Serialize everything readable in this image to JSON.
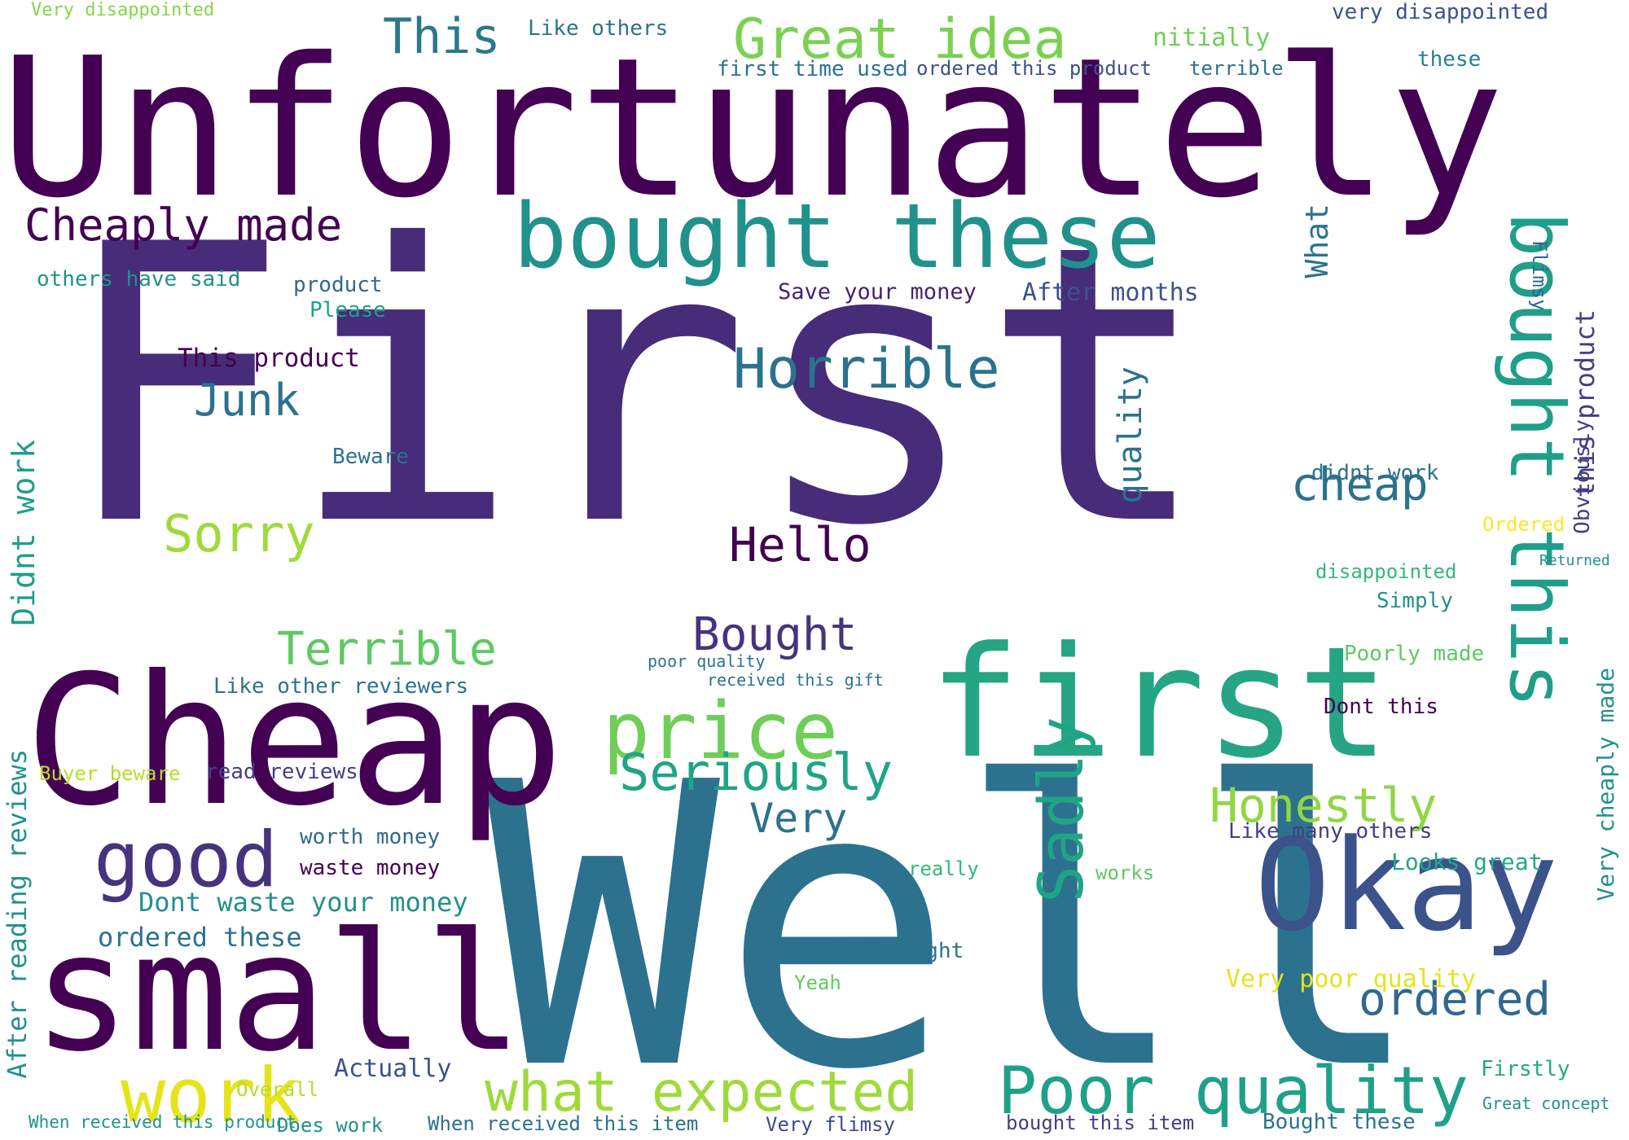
{
  "palette": {
    "dark_purple": "#440154",
    "indigo": "#3b528b",
    "blue": "#31688e",
    "teal": "#21918c",
    "green": "#35b779",
    "light_green": "#5ec962",
    "lime": "#90d743",
    "yellow": "#fde725"
  },
  "words": [
    {
      "text": "First",
      "color": "#472c7a"
    },
    {
      "text": "Well",
      "color": "#2c728e"
    },
    {
      "text": "Unfortunately",
      "color": "#440154"
    },
    {
      "text": "Cheap",
      "color": "#440154"
    },
    {
      "text": "first",
      "color": "#25a584"
    },
    {
      "text": "small",
      "color": "#440154"
    },
    {
      "text": "Okay",
      "color": "#3b528b"
    },
    {
      "text": "bought these",
      "color": "#21918c"
    },
    {
      "text": "bought this",
      "color": "#1f9e89"
    },
    {
      "text": "Poor quality",
      "color": "#1fa187"
    },
    {
      "text": "what expected",
      "color": "#9fda3a"
    },
    {
      "text": "work",
      "color": "#e5e419"
    },
    {
      "text": "good",
      "color": "#46337e"
    },
    {
      "text": "price",
      "color": "#6ece58"
    },
    {
      "text": "Great idea",
      "color": "#7ad151"
    },
    {
      "text": "Cheaply made",
      "color": "#440154"
    },
    {
      "text": "Seriously",
      "color": "#20a486"
    },
    {
      "text": "Sadly",
      "color": "#20a486"
    },
    {
      "text": "Honestly",
      "color": "#90d743"
    },
    {
      "text": "Sorry",
      "color": "#9fda3a"
    },
    {
      "text": "Horrible",
      "color": "#2c728e"
    },
    {
      "text": "Terrible",
      "color": "#5ec962"
    },
    {
      "text": "Hello",
      "color": "#440154"
    },
    {
      "text": "Bought",
      "color": "#46337e"
    },
    {
      "text": "ordered",
      "color": "#31688e"
    },
    {
      "text": "cheap",
      "color": "#2c728e"
    },
    {
      "text": "This",
      "color": "#2a788e"
    },
    {
      "text": "Junk",
      "color": "#2c728e"
    },
    {
      "text": "Didnt work",
      "color": "#1f9e89"
    },
    {
      "text": "quality",
      "color": "#2c728e"
    },
    {
      "text": "this product",
      "color": "#433e85"
    },
    {
      "text": "Very",
      "color": "#2c728e"
    },
    {
      "text": "Dont waste your money",
      "color": "#21918c"
    },
    {
      "text": "After reading reviews",
      "color": "#21918c"
    },
    {
      "text": "Very cheaply made",
      "color": "#21918c"
    },
    {
      "text": "Very poor quality",
      "color": "#e5e419"
    },
    {
      "text": "Looks great",
      "color": "#22a884"
    },
    {
      "text": "Bought these",
      "color": "#2c728e"
    },
    {
      "text": "Like many others",
      "color": "#433e85"
    },
    {
      "text": "Like other reviewers",
      "color": "#2c728e"
    },
    {
      "text": "read reviews",
      "color": "#433e85"
    },
    {
      "text": "waste money",
      "color": "#440154"
    },
    {
      "text": "ordered these",
      "color": "#2c728e"
    },
    {
      "text": "worth money",
      "color": "#31688e"
    },
    {
      "text": "Buyer beware",
      "color": "#b5de2b"
    },
    {
      "text": "When received this product",
      "color": "#21918c"
    },
    {
      "text": "When received this item",
      "color": "#2c728e"
    },
    {
      "text": "bought this item",
      "color": "#433e85"
    },
    {
      "text": "Very flimsy",
      "color": "#3e4a89"
    },
    {
      "text": "Actually",
      "color": "#3b528b"
    },
    {
      "text": "Does work",
      "color": "#21918c"
    },
    {
      "text": "After months",
      "color": "#3b528b"
    },
    {
      "text": "Save your money",
      "color": "#481f70"
    },
    {
      "text": "This product",
      "color": "#440154"
    },
    {
      "text": "Please",
      "color": "#1f9e89"
    },
    {
      "text": "product",
      "color": "#31688e"
    },
    {
      "text": "others have said",
      "color": "#21918c"
    },
    {
      "text": "Beware",
      "color": "#2c728e"
    },
    {
      "text": "Very disappointed",
      "color": "#86d549"
    },
    {
      "text": "very disappointed",
      "color": "#3b528b"
    },
    {
      "text": "first time used",
      "color": "#2c728e"
    },
    {
      "text": "ordered this product",
      "color": "#3b528b"
    },
    {
      "text": "Like others",
      "color": "#2c728e"
    },
    {
      "text": "nitially",
      "color": "#6ece58"
    },
    {
      "text": "terrible",
      "color": "#2c728e"
    },
    {
      "text": "these",
      "color": "#26828e"
    },
    {
      "text": "Dont this",
      "color": "#440154"
    },
    {
      "text": "Poorly made",
      "color": "#5ec962"
    },
    {
      "text": "disappointed",
      "color": "#35b779"
    },
    {
      "text": "didnt work",
      "color": "#2c728e"
    },
    {
      "text": "Ordered",
      "color": "#fde725"
    },
    {
      "text": "Simply",
      "color": "#21918c"
    },
    {
      "text": "Firstly",
      "color": "#22a884"
    },
    {
      "text": "Great concept",
      "color": "#21918c"
    },
    {
      "text": "Overall",
      "color": "#b5de2b"
    },
    {
      "text": "Yeah",
      "color": "#5ec962"
    },
    {
      "text": "Right",
      "color": "#2c728e"
    },
    {
      "text": "really",
      "color": "#35b779"
    },
    {
      "text": "works",
      "color": "#5ec962"
    },
    {
      "text": "received this gift",
      "color": "#2c728e"
    },
    {
      "text": "poor quality",
      "color": "#2c728e"
    },
    {
      "text": "What",
      "color": "#2c728e"
    },
    {
      "text": "Flimsy",
      "color": "#31688e"
    },
    {
      "text": "Obviously",
      "color": "#433e85"
    },
    {
      "text": "Returned",
      "color": "#21918c"
    }
  ]
}
